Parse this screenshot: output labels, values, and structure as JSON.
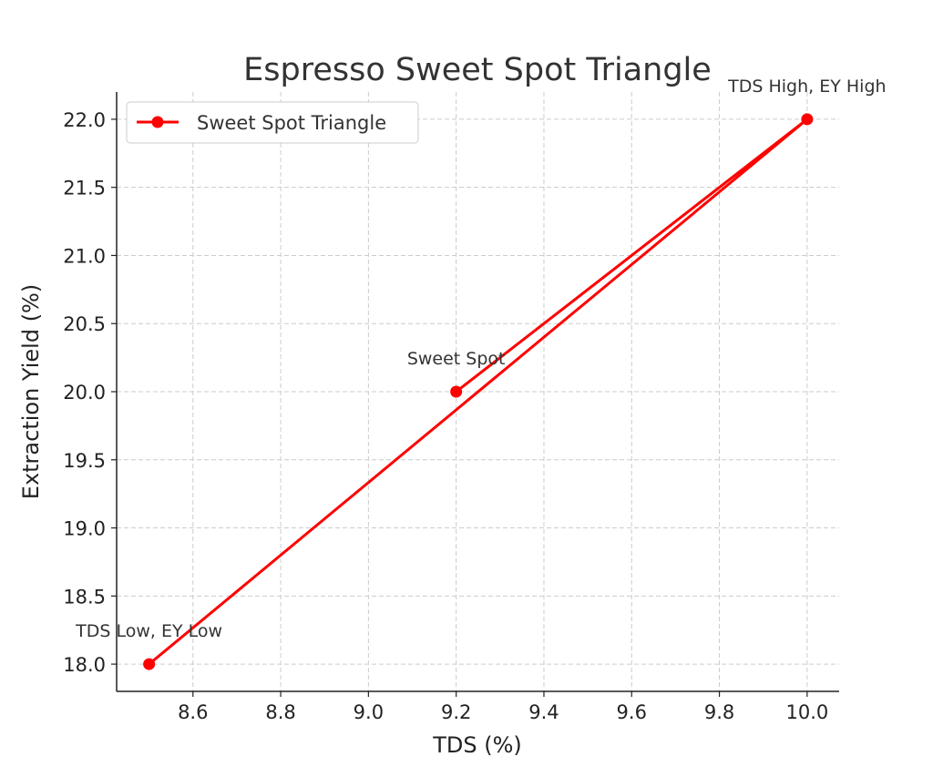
{
  "chart_data": {
    "type": "line",
    "title": "Espresso Sweet Spot Triangle",
    "xlabel": "TDS (%)",
    "ylabel": "Extraction Yield (%)",
    "xlim": [
      8.426,
      10.073
    ],
    "ylim": [
      17.8,
      22.2
    ],
    "grid": true,
    "legend_placement": "top-left",
    "x_ticks": [
      8.6,
      8.8,
      9.0,
      9.2,
      9.4,
      9.6,
      9.8,
      10.0
    ],
    "x_tick_labels": [
      "8.6",
      "8.8",
      "9.0",
      "9.2",
      "9.4",
      "9.6",
      "9.8",
      "10.0"
    ],
    "y_ticks": [
      18.0,
      18.5,
      19.0,
      19.5,
      20.0,
      20.5,
      21.0,
      21.5,
      22.0
    ],
    "y_tick_labels": [
      "18.0",
      "18.5",
      "19.0",
      "19.5",
      "20.0",
      "20.5",
      "21.0",
      "21.5",
      "22.0"
    ],
    "series": [
      {
        "name": "Sweet Spot Triangle",
        "color": "#ff0000",
        "marker": "circle",
        "x": [
          9.2,
          10.0,
          8.5
        ],
        "y": [
          20.0,
          22.0,
          18.0
        ]
      }
    ],
    "annotations": [
      {
        "text": "TDS Low, EY Low",
        "x": 8.5,
        "y": 18.0
      },
      {
        "text": "Sweet Spot",
        "x": 9.2,
        "y": 20.0
      },
      {
        "text": "TDS High, EY High",
        "x": 10.0,
        "y": 22.0
      }
    ]
  }
}
